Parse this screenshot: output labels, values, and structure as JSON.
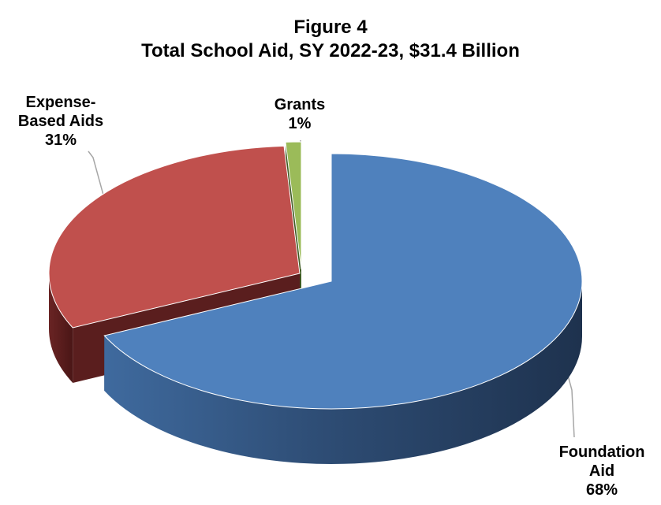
{
  "chart_data": {
    "type": "pie",
    "title": "Figure 4",
    "subtitle": "Total School Aid, SY 2022-23, $31.4 Billion",
    "slices": [
      {
        "label_lines": [
          "Foundation",
          "Aid",
          "68%"
        ],
        "value": 68,
        "color": "#4F81BD",
        "side_color": "#2A4A70"
      },
      {
        "label_lines": [
          "Expense-",
          "Based Aids",
          "31%"
        ],
        "value": 31,
        "color": "#C0504D",
        "side_color": "#5A1E1E"
      },
      {
        "label_lines": [
          "Grants",
          "1%"
        ],
        "value": 1,
        "color": "#9BBB59",
        "side_color": "#3E5A22"
      }
    ],
    "legend": "none",
    "style": "3d-exploded-pie"
  }
}
